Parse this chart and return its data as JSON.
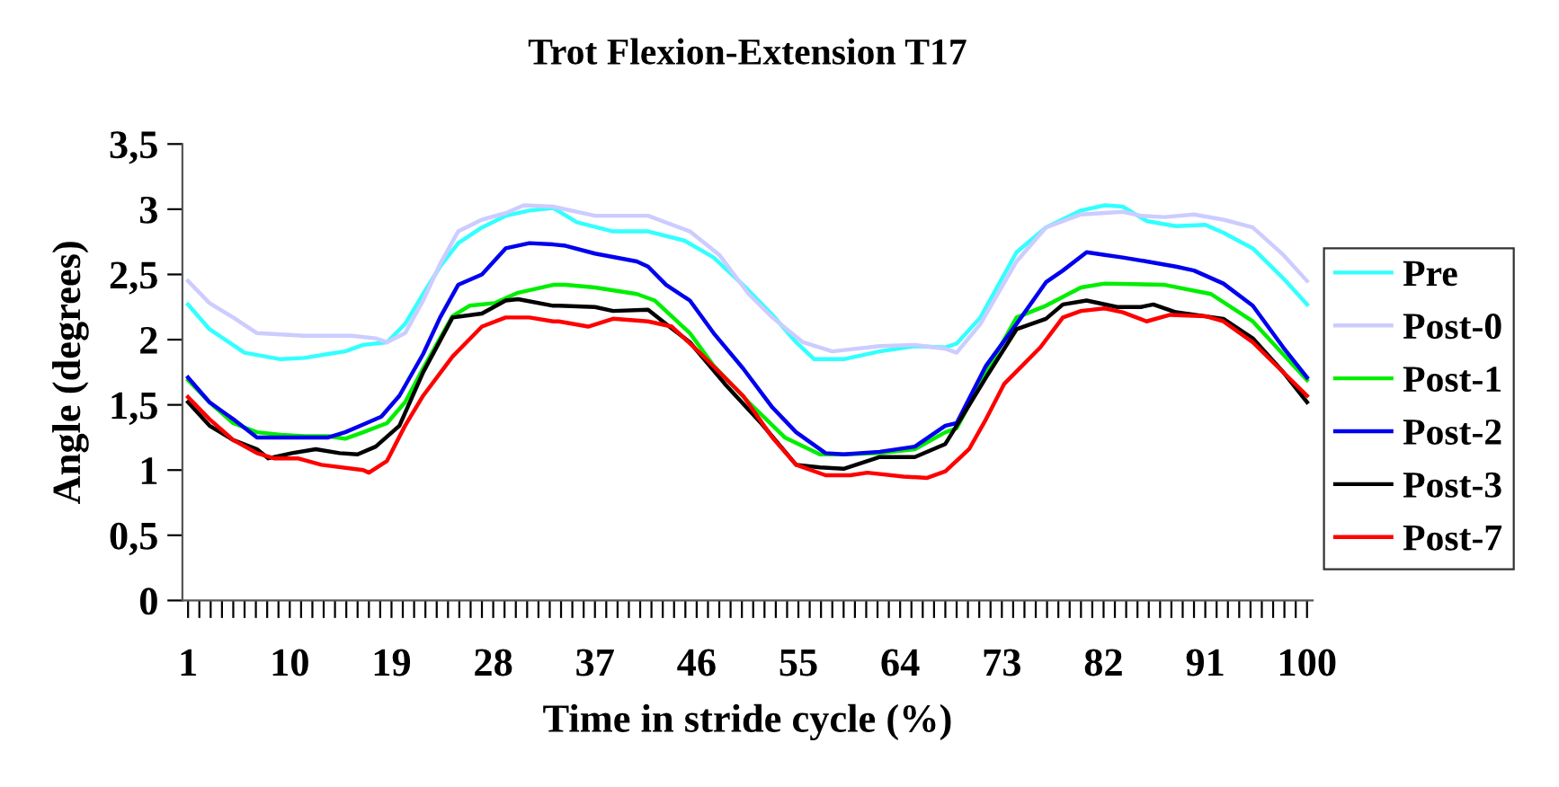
{
  "chart_data": {
    "type": "line",
    "title": "Trot Flexion-Extension T17",
    "xlabel": "Time in stride cycle (%)",
    "ylabel": "Angle (degrees)",
    "xlim": [
      0.5,
      100.5
    ],
    "xticks": [
      1,
      {
        "value": 2,
        "label": null
      },
      {
        "value": 3,
        "label": null
      },
      {
        "value": 4,
        "label": null
      },
      {
        "value": 5,
        "label": null
      },
      {
        "value": 6,
        "label": null
      },
      {
        "value": 7,
        "label": null
      },
      {
        "value": 8,
        "label": null
      },
      {
        "value": 9,
        "label": null
      },
      10,
      {
        "value": 11,
        "label": null
      },
      {
        "value": 12,
        "label": null
      },
      {
        "value": 13,
        "label": null
      },
      {
        "value": 14,
        "label": null
      },
      {
        "value": 15,
        "label": null
      },
      {
        "value": 16,
        "label": null
      },
      {
        "value": 17,
        "label": null
      },
      {
        "value": 18,
        "label": null
      },
      19,
      {
        "value": 20,
        "label": null
      },
      {
        "value": 21,
        "label": null
      },
      {
        "value": 22,
        "label": null
      },
      {
        "value": 23,
        "label": null
      },
      {
        "value": 24,
        "label": null
      },
      {
        "value": 25,
        "label": null
      },
      {
        "value": 26,
        "label": null
      },
      {
        "value": 27,
        "label": null
      },
      28,
      {
        "value": 29,
        "label": null
      },
      {
        "value": 30,
        "label": null
      },
      {
        "value": 31,
        "label": null
      },
      {
        "value": 32,
        "label": null
      },
      {
        "value": 33,
        "label": null
      },
      {
        "value": 34,
        "label": null
      },
      {
        "value": 35,
        "label": null
      },
      {
        "value": 36,
        "label": null
      },
      37,
      {
        "value": 38,
        "label": null
      },
      {
        "value": 39,
        "label": null
      },
      {
        "value": 40,
        "label": null
      },
      {
        "value": 41,
        "label": null
      },
      {
        "value": 42,
        "label": null
      },
      {
        "value": 43,
        "label": null
      },
      {
        "value": 44,
        "label": null
      },
      {
        "value": 45,
        "label": null
      },
      46,
      {
        "value": 47,
        "label": null
      },
      {
        "value": 48,
        "label": null
      },
      {
        "value": 49,
        "label": null
      },
      {
        "value": 50,
        "label": null
      },
      {
        "value": 51,
        "label": null
      },
      {
        "value": 52,
        "label": null
      },
      {
        "value": 53,
        "label": null
      },
      {
        "value": 54,
        "label": null
      },
      55,
      {
        "value": 56,
        "label": null
      },
      {
        "value": 57,
        "label": null
      },
      {
        "value": 58,
        "label": null
      },
      {
        "value": 59,
        "label": null
      },
      {
        "value": 60,
        "label": null
      },
      {
        "value": 61,
        "label": null
      },
      {
        "value": 62,
        "label": null
      },
      {
        "value": 63,
        "label": null
      },
      64,
      {
        "value": 65,
        "label": null
      },
      {
        "value": 66,
        "label": null
      },
      {
        "value": 67,
        "label": null
      },
      {
        "value": 68,
        "label": null
      },
      {
        "value": 69,
        "label": null
      },
      {
        "value": 70,
        "label": null
      },
      {
        "value": 71,
        "label": null
      },
      {
        "value": 72,
        "label": null
      },
      73,
      {
        "value": 74,
        "label": null
      },
      {
        "value": 75,
        "label": null
      },
      {
        "value": 76,
        "label": null
      },
      {
        "value": 77,
        "label": null
      },
      {
        "value": 78,
        "label": null
      },
      {
        "value": 79,
        "label": null
      },
      {
        "value": 80,
        "label": null
      },
      {
        "value": 81,
        "label": null
      },
      82,
      {
        "value": 83,
        "label": null
      },
      {
        "value": 84,
        "label": null
      },
      {
        "value": 85,
        "label": null
      },
      {
        "value": 86,
        "label": null
      },
      {
        "value": 87,
        "label": null
      },
      {
        "value": 88,
        "label": null
      },
      {
        "value": 89,
        "label": null
      },
      {
        "value": 90,
        "label": null
      },
      91,
      {
        "value": 92,
        "label": null
      },
      {
        "value": 93,
        "label": null
      },
      {
        "value": 94,
        "label": null
      },
      {
        "value": 95,
        "label": null
      },
      {
        "value": 96,
        "label": null
      },
      {
        "value": 97,
        "label": null
      },
      {
        "value": 98,
        "label": null
      },
      {
        "value": 99,
        "label": null
      },
      100
    ],
    "ylim": [
      0,
      3.5
    ],
    "yticks": [
      0,
      {
        "value": 0.5,
        "label": "0,5"
      },
      1,
      {
        "value": 1.5,
        "label": "1,5"
      },
      2,
      {
        "value": 2.5,
        "label": "2,5"
      },
      3,
      {
        "value": 3.5,
        "label": "3,5"
      }
    ],
    "grid": false,
    "legend": "right",
    "marker": "none",
    "line_style": "solid",
    "series": [
      {
        "name": "Pre",
        "color": "#33ffff",
        "x": [
          1.0,
          2.9,
          6.0,
          9.2,
          11.3,
          13.4,
          14.9,
          16.5,
          18.6,
          20.2,
          21.8,
          23.3,
          24.9,
          27.0,
          29.1,
          31.2,
          33.3,
          35.4,
          38.6,
          41.7,
          44.9,
          47.5,
          50.1,
          52.7,
          54.8,
          56.4,
          59.0,
          62.2,
          65.3,
          68.0,
          69.0,
          71.1,
          74.3,
          76.9,
          80.0,
          82.1,
          83.7,
          85.8,
          88.4,
          91.0,
          92.6,
          95.2,
          97.9,
          100.0
        ],
        "values": [
          2.27,
          2.08,
          1.9,
          1.85,
          1.86,
          1.89,
          1.91,
          1.96,
          1.98,
          2.12,
          2.35,
          2.56,
          2.74,
          2.86,
          2.95,
          2.99,
          3.01,
          2.9,
          2.83,
          2.83,
          2.76,
          2.63,
          2.42,
          2.19,
          1.98,
          1.85,
          1.85,
          1.91,
          1.95,
          1.94,
          1.97,
          2.17,
          2.67,
          2.86,
          2.99,
          3.03,
          3.02,
          2.91,
          2.87,
          2.88,
          2.82,
          2.7,
          2.47,
          2.27
        ]
      },
      {
        "name": "Post-0",
        "color": "#ccccff",
        "x": [
          1.0,
          2.9,
          5.0,
          7.1,
          9.2,
          11.3,
          15.5,
          17.6,
          18.6,
          20.2,
          21.8,
          23.3,
          24.9,
          27.0,
          29.1,
          30.7,
          33.3,
          37.0,
          41.7,
          45.4,
          48.0,
          50.6,
          52.7,
          55.4,
          58.0,
          62.2,
          65.3,
          68.0,
          69.0,
          71.1,
          74.3,
          76.9,
          80.0,
          83.7,
          85.3,
          87.4,
          90.0,
          92.6,
          95.2,
          97.9,
          100.0
        ],
        "values": [
          2.45,
          2.28,
          2.17,
          2.05,
          2.04,
          2.03,
          2.03,
          2.01,
          1.98,
          2.05,
          2.3,
          2.58,
          2.83,
          2.92,
          2.97,
          3.03,
          3.02,
          2.95,
          2.95,
          2.83,
          2.65,
          2.35,
          2.17,
          1.98,
          1.91,
          1.95,
          1.96,
          1.93,
          1.9,
          2.12,
          2.6,
          2.86,
          2.96,
          2.98,
          2.95,
          2.94,
          2.96,
          2.92,
          2.86,
          2.65,
          2.45
        ]
      },
      {
        "name": "Post-1",
        "color": "#00ee00",
        "x": [
          1.0,
          2.9,
          5.0,
          7.1,
          9.2,
          11.3,
          13.4,
          14.9,
          16.5,
          18.6,
          20.2,
          21.8,
          24.4,
          25.9,
          28.1,
          30.2,
          33.3,
          34.4,
          37.0,
          40.7,
          42.3,
          45.4,
          47.5,
          50.6,
          53.8,
          56.9,
          59.0,
          62.2,
          65.3,
          68.0,
          69.0,
          71.6,
          74.3,
          76.9,
          80.0,
          82.1,
          87.4,
          91.5,
          95.2,
          100.0
        ],
        "values": [
          1.69,
          1.52,
          1.36,
          1.29,
          1.27,
          1.26,
          1.26,
          1.24,
          1.29,
          1.36,
          1.52,
          1.78,
          2.18,
          2.26,
          2.28,
          2.36,
          2.42,
          2.42,
          2.4,
          2.35,
          2.3,
          2.05,
          1.8,
          1.52,
          1.25,
          1.12,
          1.12,
          1.13,
          1.16,
          1.29,
          1.32,
          1.75,
          2.17,
          2.26,
          2.4,
          2.43,
          2.42,
          2.35,
          2.14,
          1.69
        ]
      },
      {
        "name": "Post-2",
        "color": "#0000ee",
        "x": [
          1.0,
          2.9,
          5.0,
          7.1,
          11.3,
          13.4,
          14.9,
          16.5,
          18.1,
          19.7,
          21.8,
          23.3,
          24.9,
          27.0,
          29.1,
          31.2,
          33.3,
          34.4,
          37.0,
          40.7,
          41.7,
          43.3,
          45.4,
          47.5,
          50.1,
          52.7,
          54.8,
          57.4,
          59.0,
          62.2,
          65.3,
          68.0,
          69.0,
          71.6,
          74.3,
          76.9,
          78.4,
          80.5,
          82.1,
          83.7,
          85.8,
          88.4,
          90.0,
          92.6,
          95.2,
          97.9,
          100.0
        ],
        "values": [
          1.71,
          1.52,
          1.39,
          1.25,
          1.25,
          1.25,
          1.29,
          1.35,
          1.41,
          1.57,
          1.89,
          2.17,
          2.42,
          2.5,
          2.7,
          2.74,
          2.73,
          2.72,
          2.66,
          2.6,
          2.56,
          2.42,
          2.3,
          2.05,
          1.78,
          1.48,
          1.29,
          1.13,
          1.12,
          1.14,
          1.18,
          1.34,
          1.36,
          1.8,
          2.12,
          2.44,
          2.53,
          2.67,
          2.65,
          2.63,
          2.6,
          2.56,
          2.53,
          2.43,
          2.26,
          1.94,
          1.71
        ]
      },
      {
        "name": "Post-3",
        "color": "#000000",
        "x": [
          1.0,
          2.9,
          5.0,
          7.1,
          8.1,
          10.2,
          12.3,
          14.4,
          16.0,
          17.6,
          19.7,
          21.8,
          24.4,
          27.0,
          29.1,
          30.2,
          33.3,
          33.8,
          37.0,
          38.6,
          41.7,
          43.3,
          45.4,
          48.5,
          51.7,
          54.8,
          56.9,
          59.0,
          62.2,
          65.3,
          68.0,
          69.0,
          71.6,
          74.3,
          76.9,
          78.4,
          80.5,
          83.2,
          85.3,
          86.4,
          88.4,
          92.6,
          95.2,
          97.9,
          100.0
        ],
        "values": [
          1.52,
          1.34,
          1.23,
          1.16,
          1.09,
          1.13,
          1.16,
          1.13,
          1.12,
          1.18,
          1.34,
          1.75,
          2.17,
          2.2,
          2.3,
          2.31,
          2.26,
          2.26,
          2.25,
          2.22,
          2.23,
          2.12,
          1.98,
          1.66,
          1.36,
          1.04,
          1.02,
          1.01,
          1.1,
          1.1,
          1.2,
          1.34,
          1.71,
          2.08,
          2.16,
          2.27,
          2.3,
          2.25,
          2.25,
          2.27,
          2.21,
          2.16,
          2.01,
          1.75,
          1.52
        ]
      },
      {
        "name": "Post-7",
        "color": "#ff0000",
        "x": [
          1.0,
          2.9,
          5.0,
          7.1,
          8.6,
          10.7,
          12.8,
          16.5,
          17.0,
          18.6,
          20.2,
          21.8,
          24.4,
          27.0,
          29.1,
          31.2,
          33.3,
          33.8,
          36.4,
          38.6,
          41.7,
          43.8,
          46.4,
          50.1,
          52.7,
          54.8,
          57.4,
          59.6,
          61.1,
          64.3,
          66.4,
          68.0,
          70.1,
          71.6,
          73.2,
          76.4,
          78.4,
          80.0,
          82.1,
          83.7,
          85.8,
          87.9,
          91.0,
          92.6,
          95.2,
          100.0
        ],
        "values": [
          1.56,
          1.39,
          1.23,
          1.13,
          1.09,
          1.09,
          1.04,
          1.0,
          0.98,
          1.07,
          1.34,
          1.57,
          1.87,
          2.1,
          2.17,
          2.17,
          2.14,
          2.14,
          2.1,
          2.16,
          2.14,
          2.1,
          1.89,
          1.57,
          1.25,
          1.04,
          0.96,
          0.96,
          0.98,
          0.95,
          0.94,
          0.99,
          1.16,
          1.39,
          1.66,
          1.94,
          2.17,
          2.22,
          2.24,
          2.21,
          2.14,
          2.19,
          2.18,
          2.14,
          1.98,
          1.57
        ]
      }
    ]
  }
}
